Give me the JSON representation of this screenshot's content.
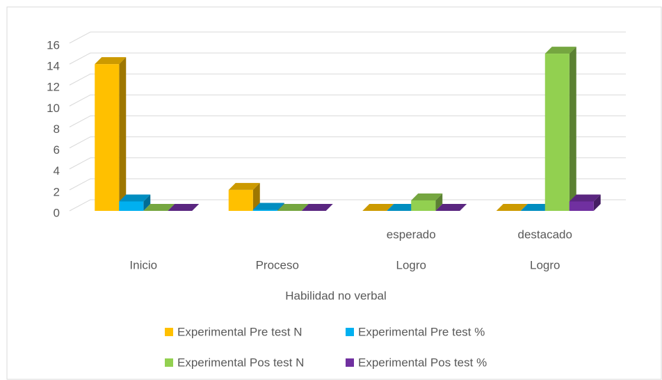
{
  "chart_data": {
    "type": "bar3d",
    "categories": [
      [
        "Inicio"
      ],
      [
        "Proceso"
      ],
      [
        "esperado",
        "Logro"
      ],
      [
        "destacado",
        "Logro"
      ]
    ],
    "series": [
      {
        "name": "Experimental Pre test N",
        "color": "#FFC000",
        "values": [
          14,
          2,
          0,
          0
        ]
      },
      {
        "name": "Experimental Pre test %",
        "color": "#00B0F0",
        "values": [
          0.9,
          0.1,
          0,
          0
        ]
      },
      {
        "name": "Experimental Pos test N",
        "color": "#92D050",
        "values": [
          0,
          0,
          1,
          15
        ]
      },
      {
        "name": "Experimental Pos test %",
        "color": "#7030A0",
        "values": [
          0,
          0,
          0,
          0.9
        ]
      }
    ],
    "x_label": "Habilidad no verbal",
    "ylim": [
      0,
      16
    ],
    "yticks": [
      0,
      2,
      4,
      6,
      8,
      10,
      12,
      14,
      16
    ],
    "grid": true,
    "legend": "bottom"
  }
}
